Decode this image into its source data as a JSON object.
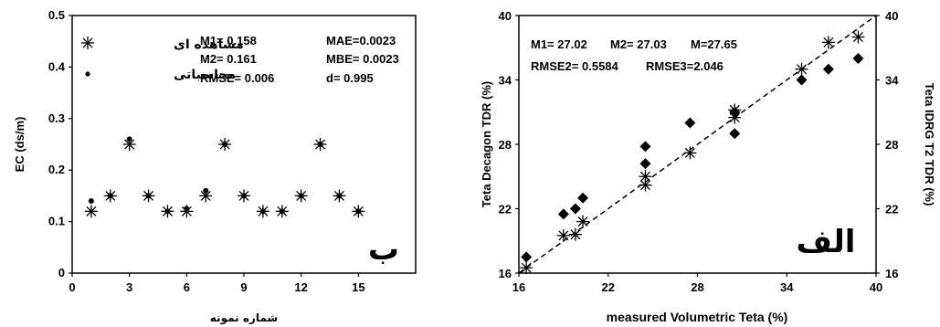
{
  "chart_data": [
    {
      "type": "scatter",
      "xlabel": "شماره نمونه",
      "ylabel": "EC (ds/m)",
      "xlim": [
        0,
        18
      ],
      "ylim": [
        0,
        0.5
      ],
      "x_ticks": [
        "0",
        "3",
        "6",
        "9",
        "12",
        "15"
      ],
      "y_ticks": [
        "0",
        "0.1",
        "0.2",
        "0.3",
        "0.4",
        "0.5"
      ],
      "grid": false,
      "legend": [
        "مشاهده ای",
        "محاسباتی"
      ],
      "legend_position": "top-left",
      "panel_label": "ب",
      "annotations": [
        "M1= 0.158",
        "M2= 0.161",
        "RMSE= 0.006",
        "MAE=0.0023",
        "MBE= 0.0023",
        "d= 0.995"
      ],
      "series": [
        {
          "name": "مشاهده ای",
          "marker": "asterisk",
          "x": [
            1,
            2,
            3,
            4,
            5,
            6,
            7,
            8,
            9,
            10,
            11,
            12,
            13,
            14,
            15
          ],
          "y": [
            0.12,
            0.15,
            0.25,
            0.15,
            0.12,
            0.12,
            0.15,
            0.25,
            0.15,
            0.12,
            0.12,
            0.15,
            0.25,
            0.15,
            0.12
          ]
        },
        {
          "name": "محاسباتی",
          "marker": "dot",
          "x": [
            1,
            2,
            3,
            4,
            5,
            6,
            7,
            8,
            9,
            10,
            11,
            12,
            13,
            14,
            15
          ],
          "y": [
            0.14,
            0.15,
            0.26,
            0.15,
            0.12,
            0.125,
            0.16,
            0.25,
            0.15,
            0.12,
            0.12,
            0.15,
            0.25,
            0.15,
            0.12
          ]
        }
      ]
    },
    {
      "type": "scatter",
      "xlabel": "measured Volumetric Teta (%)",
      "ylabel": "Teta Decagon TDR (%)",
      "y2label": "Teta IDRG T2 TDR (%)",
      "xlim": [
        16,
        40
      ],
      "ylim": [
        16,
        40
      ],
      "x_ticks": [
        "16",
        "22",
        "28",
        "34",
        "40"
      ],
      "y_ticks": [
        "16",
        "22",
        "28",
        "34",
        "40"
      ],
      "y2_ticks": [
        "16",
        "22",
        "28",
        "34",
        "40"
      ],
      "grid": false,
      "panel_label": "الف",
      "annotations": [
        "M1= 27.02",
        "M2= 27.03",
        "M=27.65",
        "RMSE2= 0.5584",
        "RMSE3=2.046"
      ],
      "reference_line": {
        "style": "dashed",
        "x": [
          16,
          40
        ],
        "y": [
          16,
          40
        ]
      },
      "series": [
        {
          "marker": "diamond",
          "x": [
            16.5,
            19,
            19.8,
            20.3,
            24.5,
            24.5,
            27.5,
            30.5,
            30.5,
            35,
            36.8,
            38.8
          ],
          "y": [
            17.5,
            21.5,
            22,
            23,
            27.8,
            26.2,
            30,
            31,
            29,
            34,
            35,
            36
          ]
        },
        {
          "marker": "asterisk",
          "x": [
            16.5,
            19,
            19.8,
            20.3,
            24.5,
            24.5,
            27.5,
            30.5,
            30.5,
            35,
            36.8,
            38.8
          ],
          "y": [
            16.5,
            19.5,
            19.6,
            20.8,
            24.2,
            25,
            27.2,
            30.5,
            31.2,
            35,
            37.5,
            38
          ]
        }
      ]
    }
  ]
}
